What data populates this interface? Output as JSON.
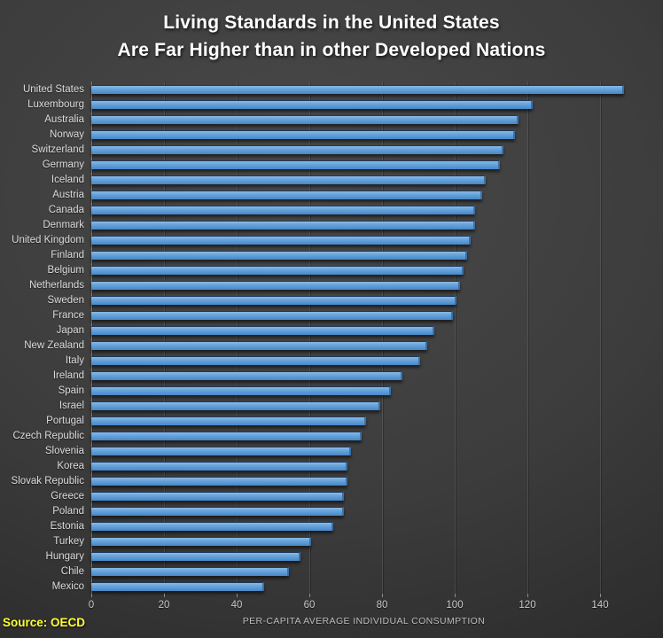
{
  "title": {
    "line1": "Living Standards in the United States",
    "line2": "Are Far Higher than in other Developed Nations"
  },
  "chart_data": {
    "type": "bar",
    "orientation": "horizontal",
    "title": "Living Standards in the United States Are Far Higher than in other Developed Nations",
    "xlabel": "PER-CAPITA AVERAGE INDIVIDUAL CONSUMPTION",
    "ylabel": "",
    "xlim": [
      0,
      150
    ],
    "x_ticks": [
      0,
      20,
      40,
      60,
      80,
      100,
      120,
      140
    ],
    "grid": true,
    "legend": false,
    "categories": [
      "United States",
      "Luxembourg",
      "Australia",
      "Norway",
      "Switzerland",
      "Germany",
      "Iceland",
      "Austria",
      "Canada",
      "Denmark",
      "United Kingdom",
      "Finland",
      "Belgium",
      "Netherlands",
      "Sweden",
      "France",
      "Japan",
      "New Zealand",
      "Italy",
      "Ireland",
      "Spain",
      "Israel",
      "Portugal",
      "Czech Republic",
      "Slovenia",
      "Korea",
      "Slovak Republic",
      "Greece",
      "Poland",
      "Estonia",
      "Turkey",
      "Hungary",
      "Chile",
      "Mexico"
    ],
    "values": [
      146,
      121,
      117,
      116,
      113,
      112,
      108,
      107,
      105,
      105,
      104,
      103,
      102,
      101,
      100,
      99,
      94,
      92,
      90,
      85,
      82,
      79,
      75,
      74,
      71,
      70,
      70,
      69,
      69,
      66,
      60,
      57,
      54,
      47
    ],
    "bar_color": "#5B9BD5"
  },
  "source": {
    "label": "Source: OECD"
  },
  "colors": {
    "background": "#3c3c3c",
    "title_text": "#ffffff",
    "axis_text": "#c8c8c8",
    "category_text": "#dcdcdc",
    "source_text": "#ffff33",
    "bar": "#5B9BD5",
    "gridline": "#555555"
  }
}
